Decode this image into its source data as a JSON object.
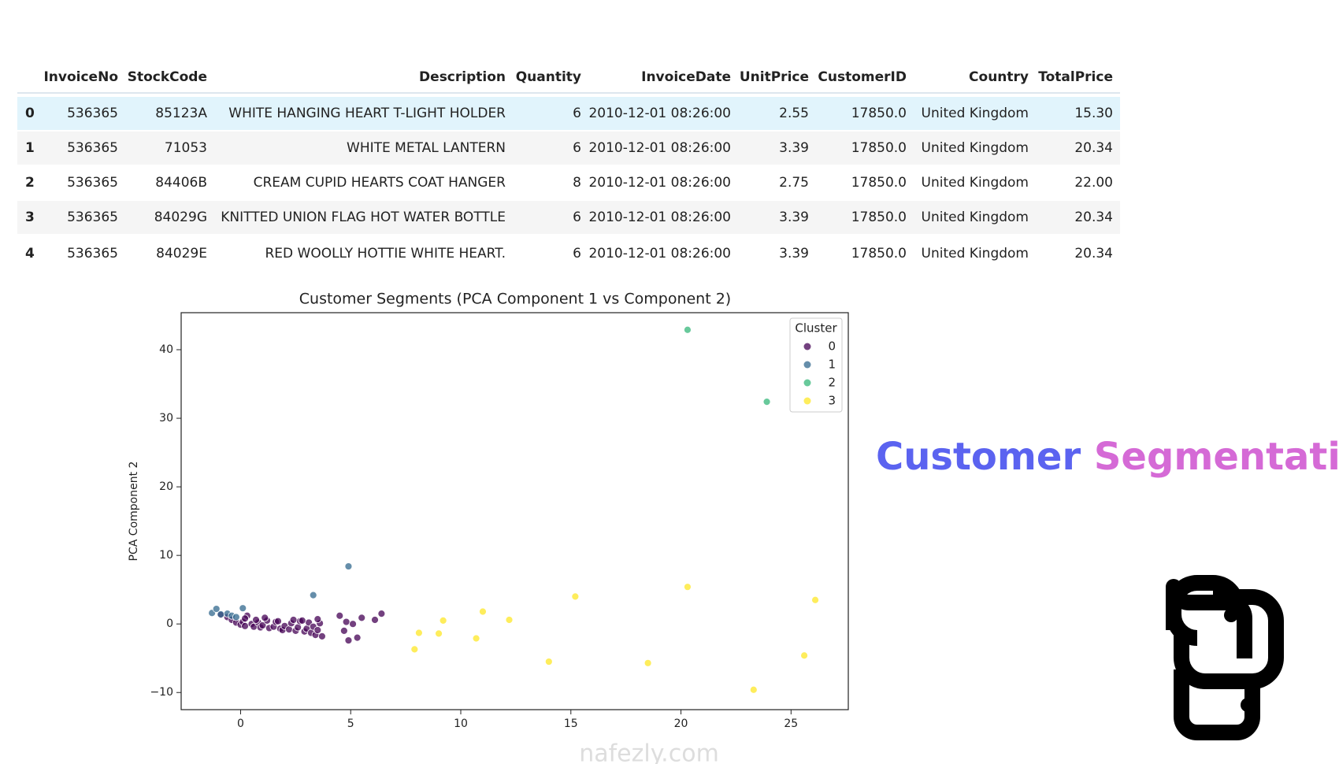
{
  "table": {
    "columns": [
      "InvoiceNo",
      "StockCode",
      "Description",
      "Quantity",
      "InvoiceDate",
      "UnitPrice",
      "CustomerID",
      "Country",
      "TotalPrice"
    ],
    "rows": [
      [
        "0",
        "536365",
        "85123A",
        "WHITE HANGING HEART T-LIGHT HOLDER",
        "6",
        "2010-12-01 08:26:00",
        "2.55",
        "17850.0",
        "United Kingdom",
        "15.30"
      ],
      [
        "1",
        "536365",
        "71053",
        "WHITE METAL LANTERN",
        "6",
        "2010-12-01 08:26:00",
        "3.39",
        "17850.0",
        "United Kingdom",
        "20.34"
      ],
      [
        "2",
        "536365",
        "84406B",
        "CREAM CUPID HEARTS COAT HANGER",
        "8",
        "2010-12-01 08:26:00",
        "2.75",
        "17850.0",
        "United Kingdom",
        "22.00"
      ],
      [
        "3",
        "536365",
        "84029G",
        "KNITTED UNION FLAG HOT WATER BOTTLE",
        "6",
        "2010-12-01 08:26:00",
        "3.39",
        "17850.0",
        "United Kingdom",
        "20.34"
      ],
      [
        "4",
        "536365",
        "84029E",
        "RED WOOLLY HOTTIE WHITE HEART.",
        "6",
        "2010-12-01 08:26:00",
        "3.39",
        "17850.0",
        "United Kingdom",
        "20.34"
      ]
    ]
  },
  "heading": {
    "first": "Customer",
    "second": "Segmentation"
  },
  "watermark": "nafezly.com",
  "chart_data": {
    "type": "scatter",
    "title": "Customer Segments (PCA Component 1 vs Component 2)",
    "y_label": "PCA Component 2",
    "xlim": [
      -2.7,
      27.6
    ],
    "ylim": [
      -12.5,
      45.4
    ],
    "xticks": [
      0,
      5,
      10,
      15,
      20,
      25
    ],
    "yticks": [
      {
        "value": -10,
        "label": "−10"
      },
      0,
      10,
      20,
      30,
      40
    ],
    "legend_title": "Cluster",
    "legend": "upper right",
    "series": [
      {
        "name": "0",
        "color": "#440154",
        "x": [
          -0.9,
          -0.6,
          -0.4,
          -0.2,
          0,
          0.1,
          0.2,
          0.3,
          0.5,
          0.6,
          0.8,
          0.9,
          1.0,
          1.2,
          1.3,
          1.5,
          1.6,
          1.8,
          1.9,
          2.0,
          2.2,
          2.3,
          2.5,
          2.6,
          2.7,
          2.9,
          3.0,
          3.1,
          3.2,
          3.3,
          3.4,
          3.5,
          3.6,
          3.7,
          0.2,
          0.7,
          1.1,
          1.7,
          2.4,
          2.8,
          3.5,
          4.5,
          4.7,
          4.8,
          5.1,
          5.5,
          5.3,
          6.1,
          6.4,
          4.9
        ],
        "values": [
          1.3,
          1.0,
          0.6,
          0.2,
          -0.1,
          0.3,
          -0.3,
          1.2,
          0.0,
          -0.4,
          0.2,
          -0.5,
          -0.2,
          0.5,
          -0.6,
          -0.4,
          0.3,
          -0.7,
          -0.9,
          -0.3,
          -0.8,
          0.1,
          -1.0,
          -0.5,
          0.4,
          -1.1,
          -0.7,
          0.2,
          -1.3,
          -0.4,
          -1.6,
          -0.9,
          0.1,
          -1.8,
          0.8,
          0.6,
          0.9,
          0.4,
          0.6,
          0.5,
          0.7,
          1.2,
          -1.0,
          0.3,
          0.0,
          0.9,
          -2.0,
          0.6,
          1.5,
          -2.4
        ]
      },
      {
        "name": "1",
        "color": "#31688e",
        "x": [
          -1.3,
          -1.1,
          -0.9,
          -0.6,
          -0.4,
          -0.2,
          0.1,
          3.3,
          4.9
        ],
        "values": [
          1.6,
          2.2,
          1.4,
          1.5,
          1.2,
          1.0,
          2.3,
          4.2,
          8.4
        ]
      },
      {
        "name": "2",
        "color": "#35b779",
        "x": [
          20.3,
          23.9
        ],
        "values": [
          42.9,
          32.4
        ]
      },
      {
        "name": "3",
        "color": "#fde725",
        "x": [
          7.9,
          8.1,
          9.0,
          9.2,
          10.7,
          11.0,
          12.2,
          14.0,
          15.2,
          18.5,
          20.3,
          23.3,
          25.6,
          26.1
        ],
        "values": [
          -3.7,
          -1.3,
          -1.4,
          0.5,
          -2.1,
          1.8,
          0.6,
          -5.5,
          4.0,
          -5.7,
          5.4,
          -9.6,
          -4.6,
          3.5
        ]
      }
    ]
  }
}
